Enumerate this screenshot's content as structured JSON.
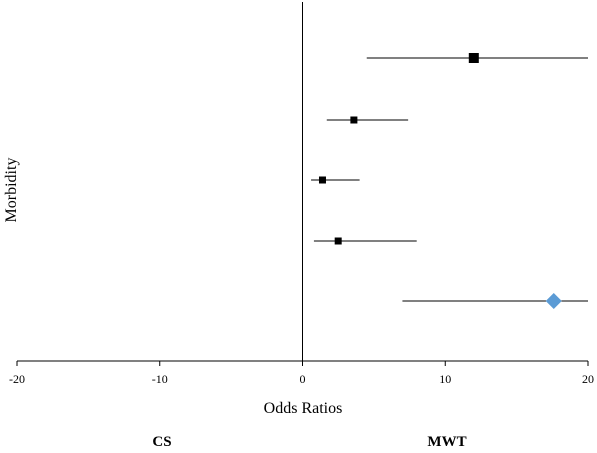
{
  "chart_data": {
    "type": "forest",
    "xlabel": "Odds Ratios",
    "ylabel": "Morbidity",
    "xlim": [
      -20,
      20
    ],
    "xticks": [
      -20,
      -10,
      0,
      10,
      20
    ],
    "reference_line": 0,
    "grid": false,
    "side_labels": {
      "left": "CS",
      "right": "MWT"
    },
    "rows": [
      {
        "estimate": 12.0,
        "ci_low": 4.5,
        "ci_high": 20,
        "marker": "square",
        "size": "large"
      },
      {
        "estimate": 3.6,
        "ci_low": 1.7,
        "ci_high": 7.4,
        "marker": "square",
        "size": "small"
      },
      {
        "estimate": 1.4,
        "ci_low": 0.6,
        "ci_high": 4.0,
        "marker": "square",
        "size": "small"
      },
      {
        "estimate": 2.5,
        "ci_low": 0.8,
        "ci_high": 8.0,
        "marker": "square",
        "size": "small"
      },
      {
        "estimate": 17.6,
        "ci_low": 7.0,
        "ci_high": 20,
        "marker": "diamond",
        "size": "large",
        "color": "#5b9bd5"
      }
    ]
  }
}
